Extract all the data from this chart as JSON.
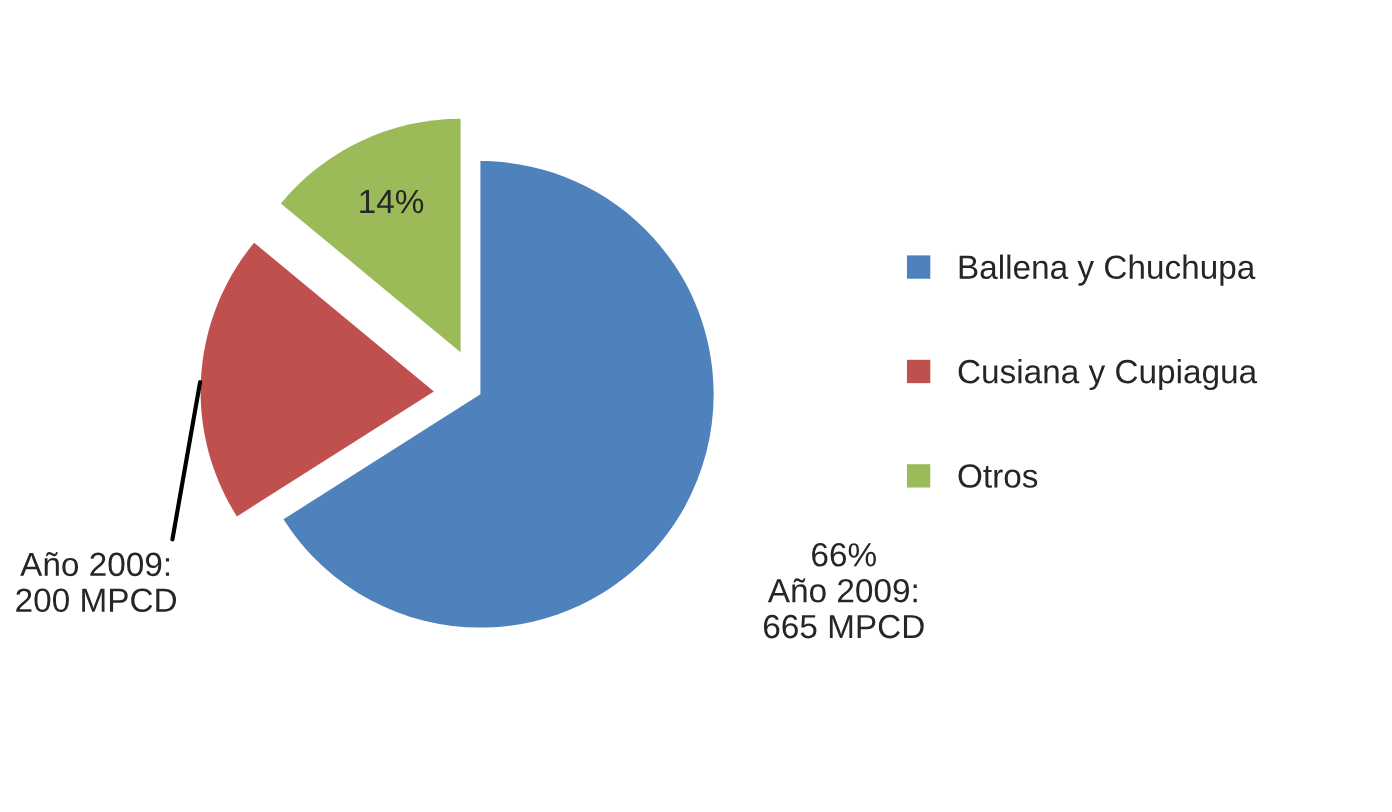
{
  "chart_data": {
    "type": "pie",
    "categories": [
      "Ballena y Chuchupa",
      "Cusiana y Cupiagua",
      "Otros"
    ],
    "values": [
      66,
      20,
      14
    ],
    "colors": [
      "#4f81bd",
      "#c0504d",
      "#9bbb59"
    ],
    "value_labels": [
      "66%\nAño 2009:\n665 MPCD",
      "Año 2009:\n200 MPCD",
      "14%"
    ],
    "legend": "right"
  }
}
